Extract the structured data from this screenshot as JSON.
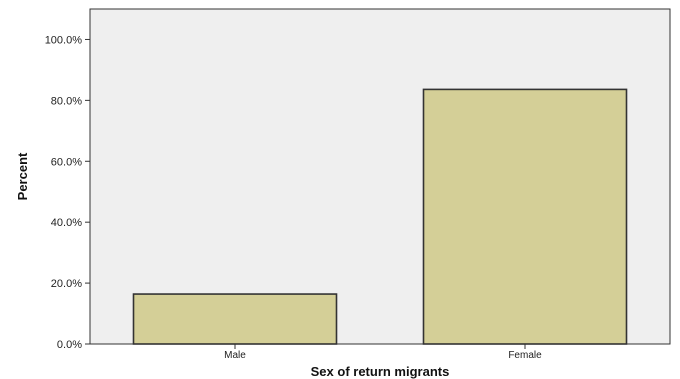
{
  "chart_data": {
    "type": "bar",
    "categories": [
      "Male",
      "Female"
    ],
    "values": [
      16.4,
      83.6
    ],
    "xlabel": "Sex of return migrants",
    "ylabel": "Percent",
    "ylim": [
      0,
      110
    ],
    "yticks": [
      0,
      20,
      40,
      60,
      80,
      100
    ],
    "ytick_labels": [
      "0.0%",
      "20.0%",
      "40.0%",
      "60.0%",
      "80.0%",
      "100.0%"
    ],
    "grid": false,
    "legend": "none",
    "colors": {
      "bar_fill": "#d4cf97",
      "bar_stroke": "#333333",
      "plot_background": "#efefef",
      "axis": "#333333"
    }
  }
}
